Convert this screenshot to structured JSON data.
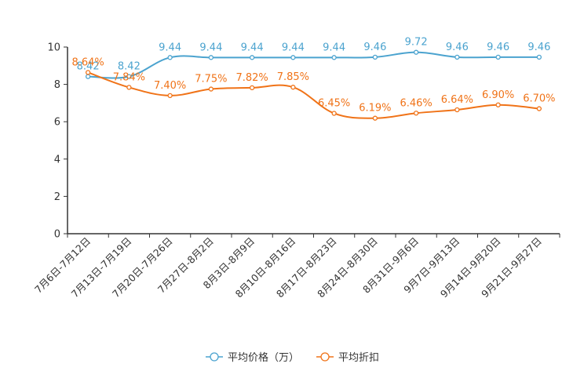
{
  "chart_data": {
    "type": "line",
    "categories": [
      "7月6日-7月12日",
      "7月13日-7月19日",
      "7月20日-7月26日",
      "7月27日-8月2日",
      "8月3日-8月9日",
      "8月10日-8月16日",
      "8月17日-8月23日",
      "8月24日-8月30日",
      "8月31日-9月6日",
      "9月7日-9月13日",
      "9月14日-9月20日",
      "9月21日-9月27日"
    ],
    "ylim": [
      0,
      10
    ],
    "yticks": [
      "0",
      "2",
      "4",
      "6",
      "8",
      "10"
    ],
    "series": [
      {
        "name": "平均价格（万）",
        "color": "#4ba3cf",
        "values": [
          8.42,
          8.42,
          9.44,
          9.44,
          9.44,
          9.44,
          9.44,
          9.46,
          9.72,
          9.46,
          9.46,
          9.46
        ],
        "labels": [
          "8.42",
          "8.42",
          "9.44",
          "9.44",
          "9.44",
          "9.44",
          "9.44",
          "9.46",
          "9.72",
          "9.46",
          "9.46",
          "9.46"
        ]
      },
      {
        "name": "平均折扣",
        "color": "#f07318",
        "values": [
          8.64,
          7.84,
          7.4,
          7.75,
          7.82,
          7.85,
          6.45,
          6.19,
          6.46,
          6.64,
          6.9,
          6.7
        ],
        "labels": [
          "8.64%",
          "7.84%",
          "7.40%",
          "7.75%",
          "7.82%",
          "7.85%",
          "6.45%",
          "6.19%",
          "6.46%",
          "6.64%",
          "6.90%",
          "6.70%"
        ]
      }
    ],
    "legend_position": "bottom-center",
    "grid": false
  }
}
